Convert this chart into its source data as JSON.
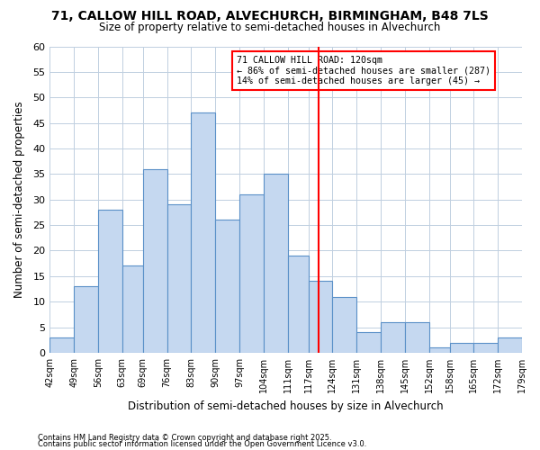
{
  "title1": "71, CALLOW HILL ROAD, ALVECHURCH, BIRMINGHAM, B48 7LS",
  "title2": "Size of property relative to semi-detached houses in Alvechurch",
  "xlabel": "Distribution of semi-detached houses by size in Alvechurch",
  "ylabel": "Number of semi-detached properties",
  "footnote1": "Contains HM Land Registry data © Crown copyright and database right 2025.",
  "footnote2": "Contains public sector information licensed under the Open Government Licence v3.0.",
  "bins": [
    42,
    49,
    56,
    63,
    69,
    76,
    83,
    90,
    97,
    104,
    111,
    117,
    124,
    131,
    138,
    145,
    152,
    158,
    165,
    172,
    179
  ],
  "bin_labels": [
    "42sqm",
    "49sqm",
    "56sqm",
    "63sqm",
    "69sqm",
    "76sqm",
    "83sqm",
    "90sqm",
    "97sqm",
    "104sqm",
    "111sqm",
    "117sqm",
    "124sqm",
    "131sqm",
    "138sqm",
    "145sqm",
    "152sqm",
    "158sqm",
    "165sqm",
    "172sqm"
  ],
  "values": [
    3,
    13,
    28,
    17,
    36,
    29,
    47,
    26,
    31,
    35,
    19,
    14,
    11,
    4,
    6,
    6,
    1,
    2,
    2,
    3
  ],
  "bar_color": "#c5d8f0",
  "bar_edge_color": "#5a90c8",
  "vline_x": 120,
  "vline_color": "red",
  "annotation_title": "71 CALLOW HILL ROAD: 120sqm",
  "annotation_line1": "← 86% of semi-detached houses are smaller (287)",
  "annotation_line2": "14% of semi-detached houses are larger (45) →",
  "ylim": [
    0,
    60
  ],
  "yticks": [
    0,
    5,
    10,
    15,
    20,
    25,
    30,
    35,
    40,
    45,
    50,
    55,
    60
  ],
  "bg_color": "#ffffff",
  "grid_color": "#c0cfe0"
}
